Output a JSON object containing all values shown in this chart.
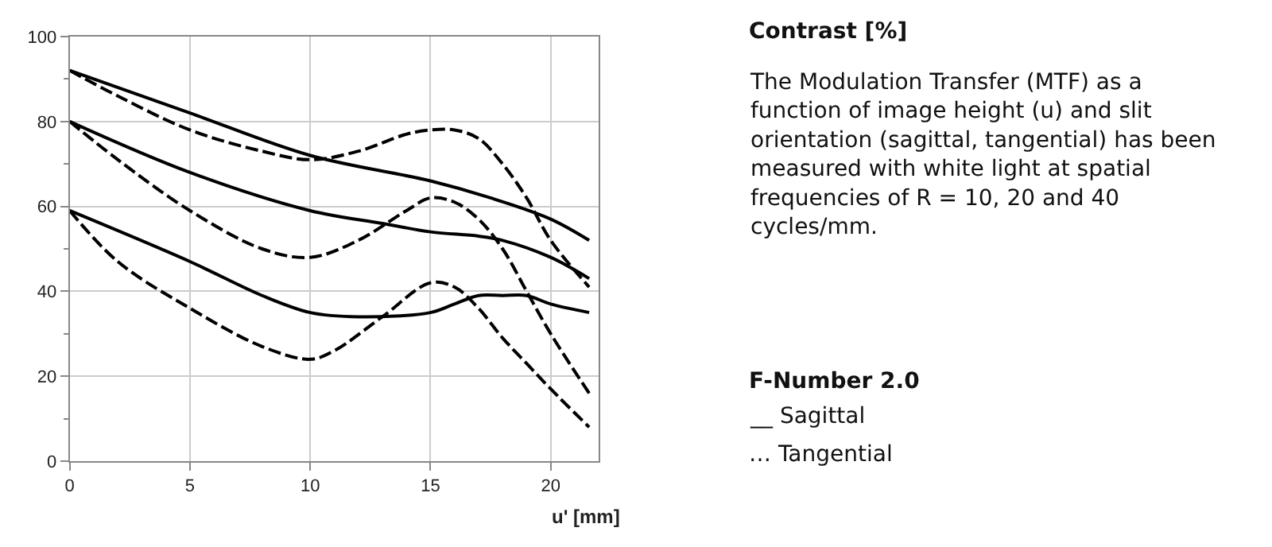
{
  "chart_data": {
    "type": "line",
    "xlabel": "u' [mm]",
    "xlim": [
      0,
      22
    ],
    "xticks": [
      0,
      5,
      10,
      15,
      20
    ],
    "ylim": [
      0,
      100
    ],
    "yticks": [
      0,
      20,
      40,
      60,
      80,
      100
    ],
    "grid": true,
    "marker": "none",
    "series": [
      {
        "color": "#000000",
        "line_style": "solid",
        "x": [
          0,
          5,
          10,
          15,
          17.5,
          20,
          21.6
        ],
        "values": [
          92,
          82,
          72,
          66,
          62,
          57,
          52
        ]
      },
      {
        "color": "#000000",
        "line_style": "dashed",
        "x": [
          0,
          2,
          5,
          8,
          10,
          12,
          14,
          15,
          16,
          17,
          18,
          19,
          20,
          21.6
        ],
        "values": [
          92,
          86,
          78,
          73,
          71,
          73,
          77,
          78,
          78,
          76,
          70,
          62,
          52,
          41
        ]
      },
      {
        "color": "#000000",
        "line_style": "solid",
        "x": [
          0,
          5,
          10,
          13,
          15,
          17,
          18,
          20,
          21.6
        ],
        "values": [
          80,
          68,
          59,
          56,
          54,
          53,
          52,
          48,
          43
        ]
      },
      {
        "color": "#000000",
        "line_style": "dashed",
        "x": [
          0,
          2,
          5,
          8,
          10,
          12,
          14,
          15,
          16,
          17,
          18,
          19,
          20,
          21.6
        ],
        "values": [
          80,
          71,
          59,
          50,
          48,
          52,
          59,
          62,
          61,
          57,
          50,
          40,
          30,
          16
        ]
      },
      {
        "color": "#000000",
        "line_style": "solid",
        "x": [
          0,
          5,
          8,
          10,
          12,
          15,
          16,
          17,
          18,
          19,
          20,
          21.6
        ],
        "values": [
          59,
          47,
          39,
          35,
          34,
          35,
          37,
          39,
          39,
          39,
          37,
          35
        ]
      },
      {
        "color": "#000000",
        "line_style": "dashed",
        "x": [
          0,
          2,
          5,
          8,
          10,
          11,
          13,
          15,
          16,
          17,
          18,
          19,
          20,
          21.6
        ],
        "values": [
          59,
          47,
          36,
          27,
          24,
          26,
          34,
          42,
          41,
          36,
          29,
          23,
          17,
          8
        ]
      }
    ],
    "annotations": [
      "Contrast [%]",
      "The Modulation Transfer (MTF) as a\nfunction of image height (u) and slit\norientation (sagittal, tangential) has been\nmeasured with white light at spatial\nfrequencies of R = 10, 20 and 40\ncycles/mm.",
      "F-Number 2.0",
      "__ Sagittal",
      "… Tangential"
    ]
  }
}
